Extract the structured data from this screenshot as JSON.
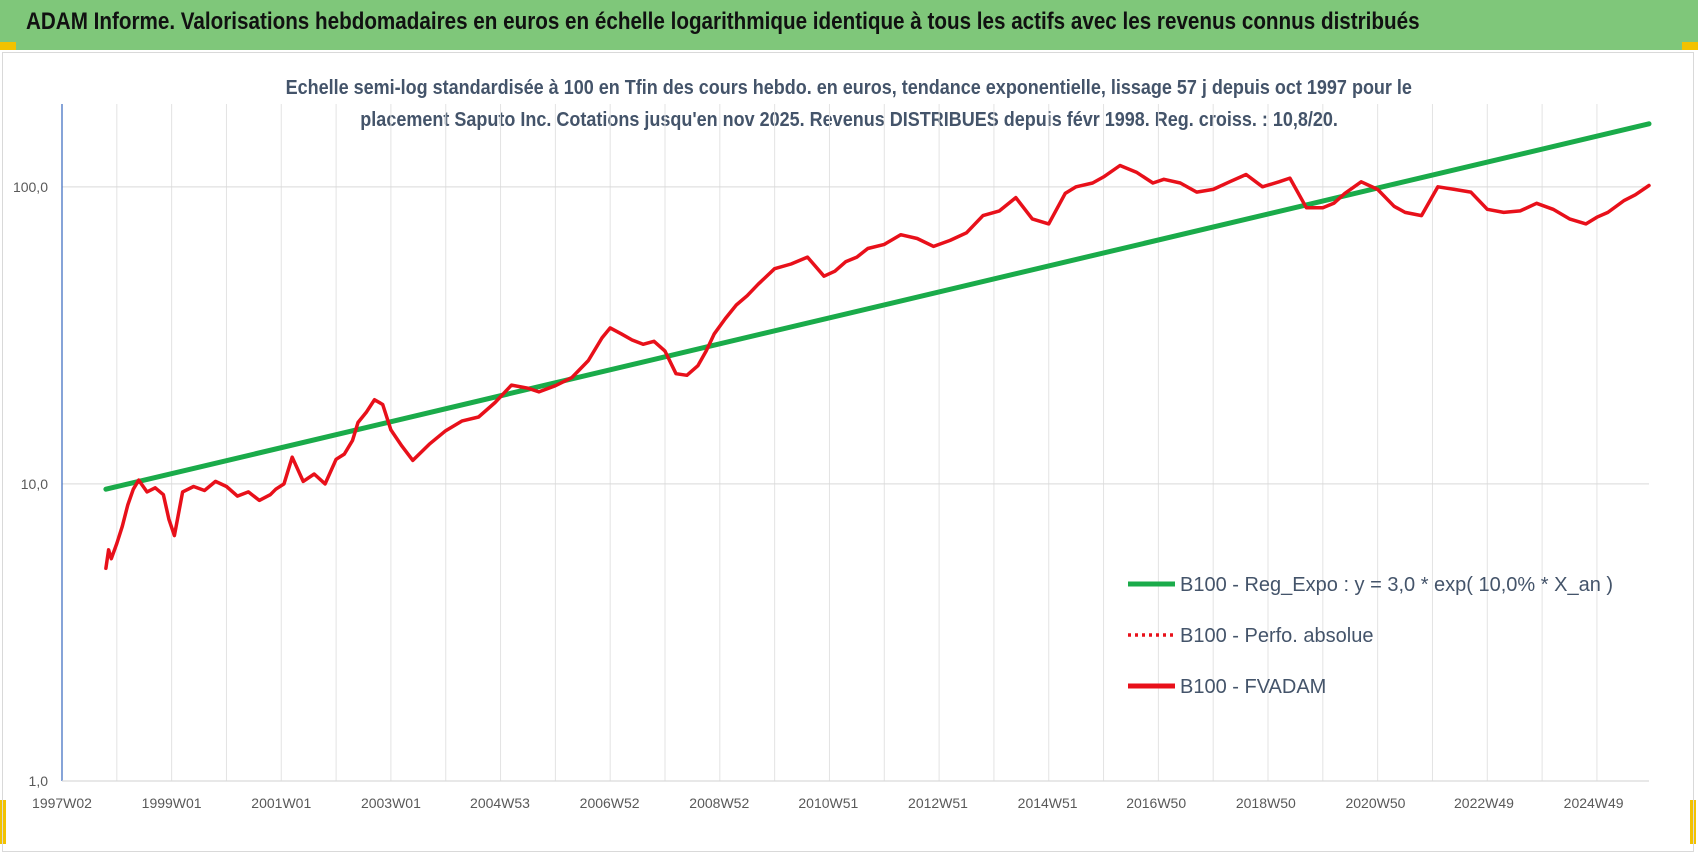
{
  "header": {
    "title": "ADAM Informe. Valorisations hebdomadaires en euros en échelle logarithmique identique à tous les actifs avec les revenus connus distribués"
  },
  "colors": {
    "banner": "#7fc77a",
    "regression": "#1aab4a",
    "fvadam": "#e8101a",
    "perfo": "#e8101a",
    "corner_marks": "#f2c200"
  },
  "chart_data": {
    "type": "line",
    "title_line1": "Echelle semi-log standardisée à 100 en Tfin des cours hebdo. en euros, tendance exponentielle, lissage 57 j depuis oct 1997 pour le",
    "title_line2": "placement Saputo Inc. Cotations jusqu'en nov 2025. Revenus DISTRIBUES depuis févr 1998. Reg. croiss. : 10,8/20.",
    "yscale": "log",
    "ylim": [
      1,
      190
    ],
    "y_ticks": [
      {
        "value": 1,
        "label": "1,0"
      },
      {
        "value": 10,
        "label": "10,0"
      },
      {
        "value": 100,
        "label": "100,0"
      }
    ],
    "xlim": [
      1997.0,
      2025.95
    ],
    "x_ticks": [
      {
        "value": 1997.0,
        "label": "1997W02"
      },
      {
        "value": 1999.0,
        "label": "1999W01"
      },
      {
        "value": 2001.0,
        "label": "2001W01"
      },
      {
        "value": 2003.0,
        "label": "2003W01"
      },
      {
        "value": 2004.99,
        "label": "2004W53"
      },
      {
        "value": 2006.99,
        "label": "2006W52"
      },
      {
        "value": 2008.99,
        "label": "2008W52"
      },
      {
        "value": 2010.98,
        "label": "2010W51"
      },
      {
        "value": 2012.98,
        "label": "2012W51"
      },
      {
        "value": 2014.98,
        "label": "2014W51"
      },
      {
        "value": 2016.96,
        "label": "2016W50"
      },
      {
        "value": 2018.96,
        "label": "2018W50"
      },
      {
        "value": 2020.96,
        "label": "2020W50"
      },
      {
        "value": 2022.94,
        "label": "2022W49"
      },
      {
        "value": 2024.94,
        "label": "2024W49"
      }
    ],
    "grid": true,
    "legend_position": "right",
    "series": [
      {
        "name": "B100 - Reg_Expo : y = 3,0 * exp( 10,0% *  X_an )",
        "style": "solid",
        "x": [
          1997.8,
          2025.95
        ],
        "y": [
          9.6,
          163
        ]
      },
      {
        "name": "B100 - Perfo. absolue",
        "style": "dotted",
        "x": [],
        "y": []
      },
      {
        "name": "B100 - FVADAM",
        "style": "solid",
        "x": [
          1997.8,
          1997.85,
          1997.9,
          1998.0,
          1998.1,
          1998.2,
          1998.3,
          1998.4,
          1998.55,
          1998.7,
          1998.85,
          1998.95,
          1999.05,
          1999.2,
          1999.4,
          1999.6,
          1999.8,
          2000.0,
          2000.2,
          2000.4,
          2000.6,
          2000.8,
          2000.9,
          2001.05,
          2001.2,
          2001.4,
          2001.6,
          2001.8,
          2002.0,
          2002.15,
          2002.3,
          2002.4,
          2002.55,
          2002.7,
          2002.85,
          2003.0,
          2003.2,
          2003.4,
          2003.7,
          2004.0,
          2004.3,
          2004.6,
          2004.9,
          2005.2,
          2005.5,
          2005.7,
          2006.0,
          2006.3,
          2006.6,
          2006.85,
          2007.0,
          2007.2,
          2007.4,
          2007.6,
          2007.8,
          2008.0,
          2008.2,
          2008.4,
          2008.6,
          2008.75,
          2008.9,
          2009.1,
          2009.3,
          2009.5,
          2009.7,
          2010.0,
          2010.3,
          2010.6,
          2010.9,
          2011.1,
          2011.3,
          2011.5,
          2011.7,
          2012.0,
          2012.3,
          2012.6,
          2012.9,
          2013.2,
          2013.5,
          2013.8,
          2014.1,
          2014.4,
          2014.7,
          2015.0,
          2015.3,
          2015.5,
          2015.8,
          2016.0,
          2016.3,
          2016.6,
          2016.9,
          2017.1,
          2017.4,
          2017.7,
          2018.0,
          2018.3,
          2018.6,
          2018.9,
          2019.2,
          2019.4,
          2019.7,
          2020.0,
          2020.2,
          2020.4,
          2020.7,
          2021.0,
          2021.3,
          2021.5,
          2021.8,
          2022.1,
          2022.4,
          2022.7,
          2023.0,
          2023.3,
          2023.6,
          2023.9,
          2024.2,
          2024.5,
          2024.8,
          2025.0,
          2025.2,
          2025.5,
          2025.7,
          2025.95
        ],
        "y": [
          5.2,
          6.0,
          5.6,
          6.3,
          7.2,
          8.5,
          9.6,
          10.3,
          9.4,
          9.7,
          9.2,
          7.6,
          6.7,
          9.4,
          9.8,
          9.5,
          10.2,
          9.8,
          9.1,
          9.4,
          8.8,
          9.2,
          9.6,
          10.0,
          12.3,
          10.2,
          10.8,
          10.0,
          12.1,
          12.6,
          14.0,
          16.1,
          17.4,
          19.2,
          18.5,
          15.2,
          13.4,
          12.0,
          13.6,
          15.1,
          16.3,
          16.8,
          18.8,
          21.5,
          21.0,
          20.4,
          21.4,
          22.8,
          26.0,
          31.0,
          33.5,
          32.0,
          30.5,
          29.5,
          30.2,
          28.0,
          23.5,
          23.2,
          25.0,
          28.0,
          32.0,
          36.0,
          40.0,
          43.0,
          47.0,
          53.0,
          55.0,
          58.0,
          50.0,
          52.0,
          56.0,
          58.0,
          62.0,
          64.0,
          69.0,
          67.0,
          63.0,
          66.0,
          70.0,
          80.0,
          83.0,
          92.0,
          78.0,
          75.0,
          95.0,
          100.0,
          103.0,
          108.0,
          118.0,
          112.0,
          103.0,
          106.0,
          103.0,
          96.0,
          98.0,
          104.0,
          110.0,
          100.0,
          104.0,
          107.0,
          85.0,
          85.0,
          88.0,
          95.0,
          104.0,
          98.0,
          86.0,
          82.0,
          80.0,
          100.0,
          98.0,
          96.0,
          84.0,
          82.0,
          83.0,
          88.0,
          84.0,
          78.0,
          75.0,
          79.0,
          82.0,
          90.0,
          94.0,
          101.0
        ]
      }
    ]
  }
}
